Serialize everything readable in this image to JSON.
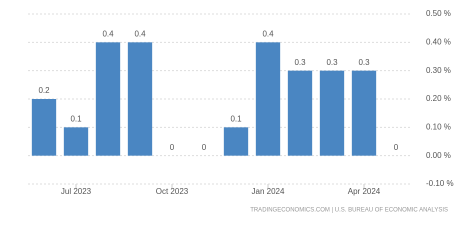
{
  "chart_data": {
    "type": "bar",
    "categories": [
      null,
      "Jul 2023",
      null,
      null,
      "Oct 2023",
      null,
      null,
      "Jan 2024",
      null,
      null,
      "Apr 2024",
      null
    ],
    "values": [
      0.2,
      0.1,
      0.4,
      0.4,
      0,
      0,
      0.1,
      0.4,
      0.3,
      0.3,
      0.3,
      0
    ],
    "color": "#4a86c2",
    "ylim": [
      -0.1,
      0.5
    ],
    "yticks": [
      {
        "value": -0.1,
        "label": "-0.10 %"
      },
      {
        "value": 0,
        "label": "0.00 %"
      },
      {
        "value": 0.1,
        "label": "0.10 %"
      },
      {
        "value": 0.2,
        "label": "0.20 %"
      },
      {
        "value": 0.3,
        "label": "0.30 %"
      },
      {
        "value": 0.4,
        "label": "0.40 %"
      },
      {
        "value": 0.5,
        "label": "0.50 %"
      }
    ],
    "grid": true,
    "source": "TRADINGECONOMICS.COM | U.S. BUREAU OF ECONOMIC ANALYSIS"
  }
}
